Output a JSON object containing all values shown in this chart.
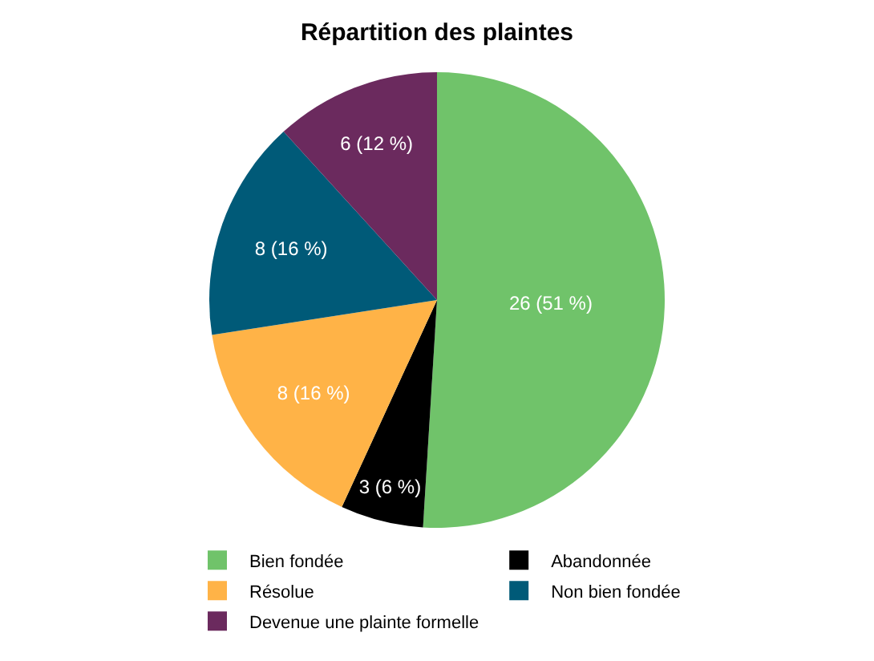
{
  "chart_data": {
    "type": "pie",
    "title": "Répartition des plaintes",
    "categories": [
      "Bien fondée",
      "Abandonnée",
      "Résolue",
      "Non bien fondée",
      "Devenue une plainte formelle"
    ],
    "values": [
      26,
      3,
      8,
      8,
      6
    ],
    "colors": [
      "#70c36a",
      "#000000",
      "#ffb347",
      "#005a78",
      "#6b2a5e"
    ],
    "value_labels": [
      "26 (51 %)",
      "3 (6 %)",
      "8 (16 %)",
      "8 (16 %)",
      "6 (12 %)"
    ],
    "legend": "bottom"
  }
}
